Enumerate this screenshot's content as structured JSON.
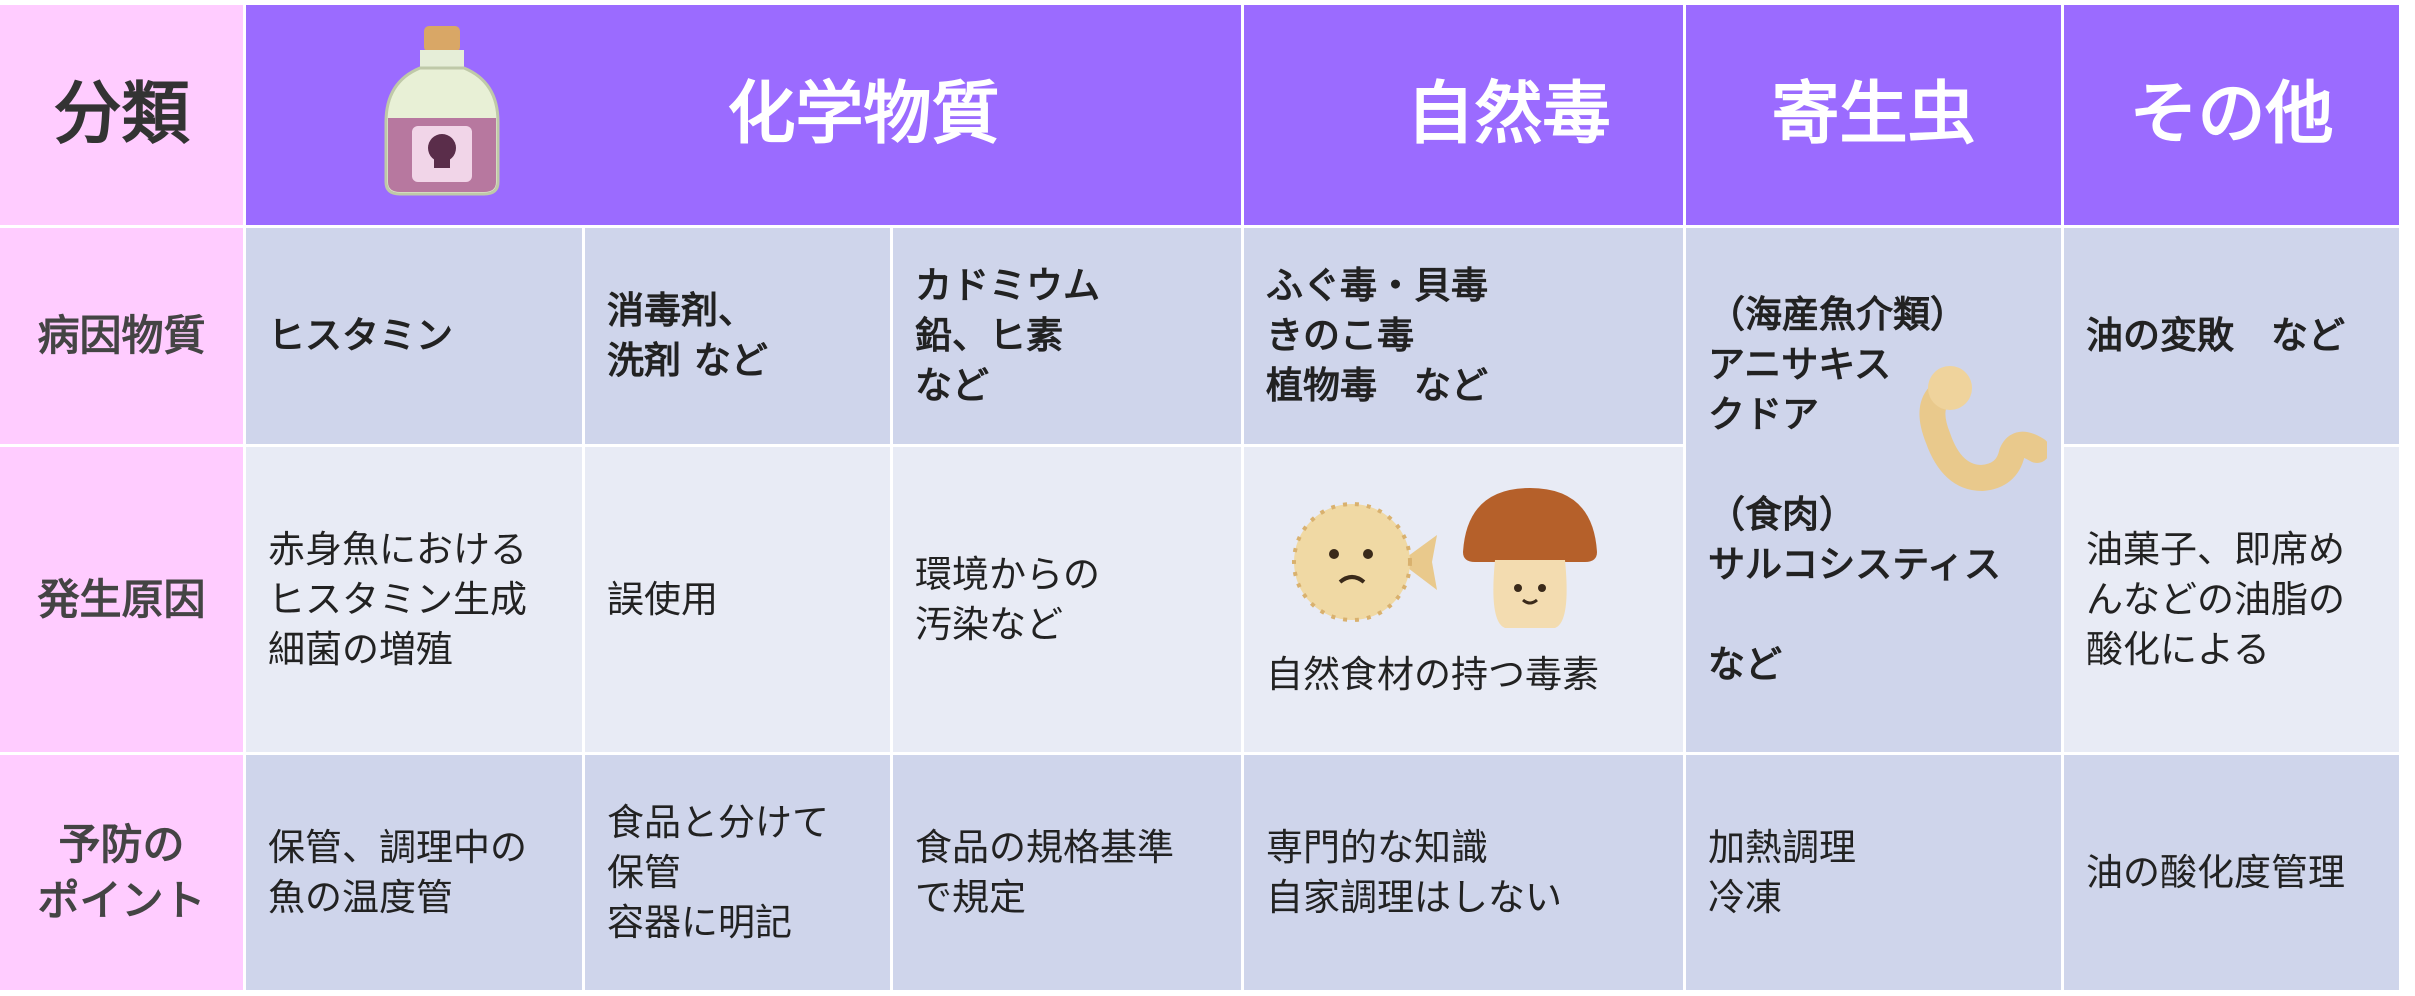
{
  "table": {
    "header": {
      "label": "分類",
      "groups": [
        "化学物質",
        "自然毒",
        "寄生虫",
        "その他"
      ]
    },
    "rows": [
      {
        "label": [
          "病因物質"
        ],
        "cells": [
          [
            "ヒスタミン"
          ],
          [
            "消毒剤、",
            "洗剤 など"
          ],
          [
            "カドミウム",
            "鉛、ヒ素",
            "など"
          ],
          [
            "ふぐ毒・貝毒",
            "きのこ毒",
            "植物毒　など"
          ],
          [
            [
              "（海産魚介類）",
              "アニサキス",
              "クドア"
            ],
            [
              "（食肉）",
              "サルコシスティス"
            ],
            [
              "など"
            ]
          ],
          [
            "油の変敗　など"
          ]
        ]
      },
      {
        "label": [
          "発生原因"
        ],
        "cells": [
          [
            "赤身魚における",
            "ヒスタミン生成",
            "細菌の増殖"
          ],
          [
            "誤使用"
          ],
          [
            "環境からの",
            "汚染など"
          ],
          [
            "自然食材の持つ毒素"
          ],
          [
            "油菓子、即席め",
            "んなどの油脂の",
            "酸化による"
          ]
        ]
      },
      {
        "label": [
          "予防の",
          "ポイント"
        ],
        "cells": [
          [
            "保管、調理中の",
            "魚の温度管"
          ],
          [
            "食品と分けて",
            "保管",
            "容器に明記"
          ],
          [
            "食品の規格基準",
            "で規定"
          ],
          [
            "専門的な知識",
            "自家調理はしない"
          ],
          [
            "加熱調理",
            "冷凍"
          ],
          [
            "油の酸化度管理"
          ]
        ]
      }
    ]
  }
}
